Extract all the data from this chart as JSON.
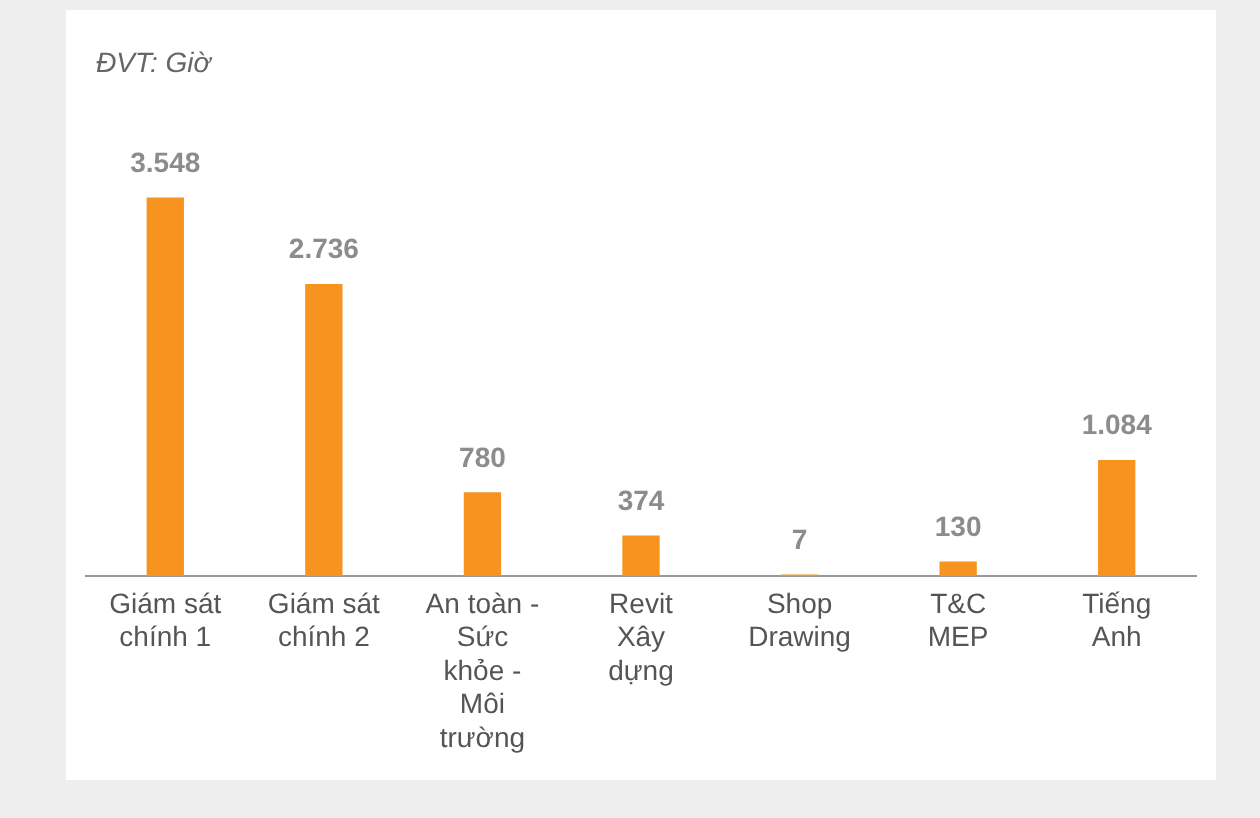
{
  "chart_data": {
    "type": "bar",
    "annotations": [
      "ĐVT: Giờ"
    ],
    "categories": [
      "Giám sát chính 1",
      "Giám sát chính 2",
      "An toàn - Sức khỏe - Môi trường",
      "Revit Xây dựng",
      "Shop Drawing",
      "T&C MEP",
      "Tiếng Anh"
    ],
    "values": [
      3548,
      2736,
      780,
      374,
      7,
      130,
      1084
    ],
    "value_labels": [
      "3.548",
      "2.736",
      "780",
      "374",
      "7",
      "130",
      "1.084"
    ],
    "color": "#f7931e",
    "grid": false,
    "legend": false
  }
}
